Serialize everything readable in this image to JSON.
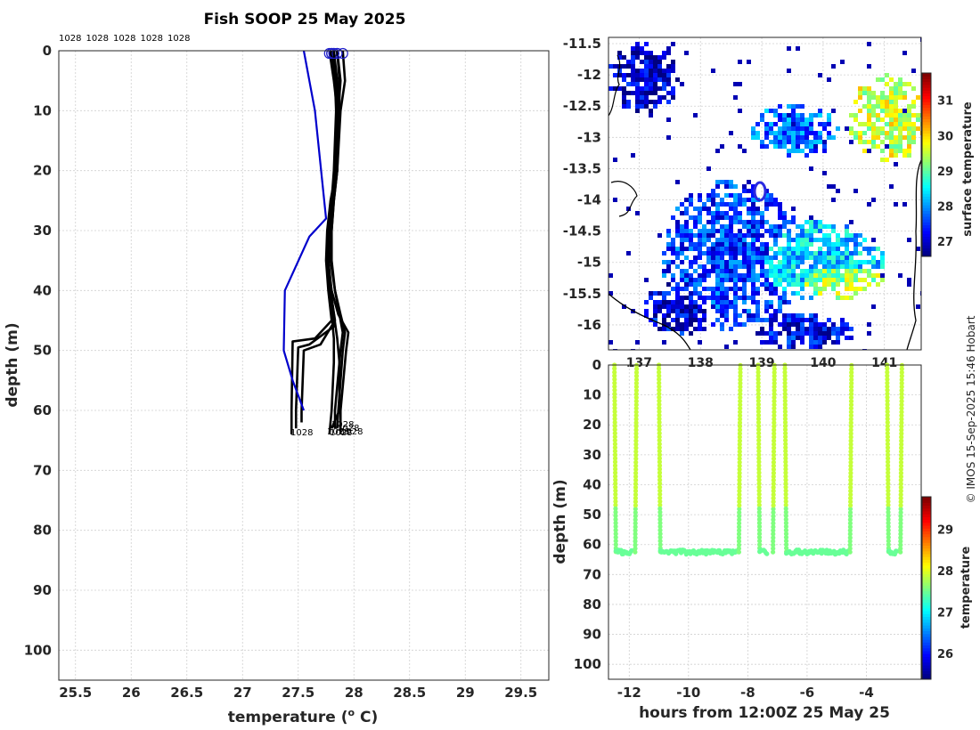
{
  "chart_data": [
    {
      "type": "line",
      "title": "Fish SOOP 25 May 2025",
      "xlabel": "temperature (",
      "xlabel_sup": "o",
      "xlabel_end": " C)",
      "ylabel": "depth (m)",
      "xlim": [
        25.35,
        29.75
      ],
      "ylim": [
        105,
        0
      ],
      "xticks": [
        25.5,
        26,
        26.5,
        27,
        27.5,
        28,
        28.5,
        29,
        29.5
      ],
      "xtick_labels": [
        "25.5",
        "26",
        "26.5",
        "27",
        "27.5",
        "28",
        "28.5",
        "29",
        "29.5"
      ],
      "yticks": [
        0,
        10,
        20,
        30,
        40,
        50,
        60,
        70,
        80,
        90,
        100
      ],
      "ytick_labels": [
        "0",
        "10",
        "20",
        "30",
        "40",
        "50",
        "60",
        "70",
        "80",
        "90",
        "100"
      ],
      "top_labels": [
        "1028",
        "1028",
        "1028",
        "1028",
        "1028"
      ],
      "bottom_labels": [
        "1028",
        "1028",
        "1028",
        "1028",
        "1028",
        "1028"
      ],
      "grid": true,
      "reference_profile": {
        "color": "#0000cc",
        "x": [
          27.55,
          27.6,
          27.65,
          27.75,
          27.6,
          27.38,
          27.37,
          27.45,
          27.55
        ],
        "y": [
          0,
          5,
          10,
          28,
          31,
          40,
          50,
          55,
          60
        ]
      },
      "profiles": [
        {
          "x": [
            27.8,
            27.83,
            27.84,
            27.82,
            27.8,
            27.78,
            27.77,
            27.79,
            27.82,
            27.85,
            27.87,
            27.87,
            27.8
          ],
          "y": [
            0,
            5,
            10,
            20,
            25,
            30,
            35,
            40,
            44,
            48,
            52,
            60,
            63
          ]
        },
        {
          "x": [
            27.82,
            27.85,
            27.86,
            27.85,
            27.82,
            27.8,
            27.79,
            27.83,
            27.88,
            27.92,
            27.9,
            27.86,
            27.85
          ],
          "y": [
            0,
            5,
            10,
            20,
            25,
            30,
            35,
            40,
            44,
            47,
            50,
            60,
            63
          ]
        },
        {
          "x": [
            27.85,
            27.88,
            27.86,
            27.84,
            27.81,
            27.78,
            27.77,
            27.8,
            27.86,
            27.95,
            27.93,
            27.88,
            27.88
          ],
          "y": [
            0,
            5,
            10,
            20,
            25,
            30,
            35,
            40,
            44,
            47,
            50,
            60,
            64
          ]
        },
        {
          "x": [
            27.78,
            27.82,
            27.85,
            27.84,
            27.8,
            27.77,
            27.76,
            27.78,
            27.8,
            27.82,
            27.82,
            27.8,
            27.78
          ],
          "y": [
            0,
            5,
            10,
            20,
            25,
            30,
            35,
            40,
            44,
            48,
            52,
            60,
            64
          ]
        },
        {
          "x": [
            27.9,
            27.92,
            27.88,
            27.85,
            27.82,
            27.8,
            27.8,
            27.83,
            27.87,
            27.9,
            27.88,
            27.83,
            27.83
          ],
          "y": [
            0,
            5,
            10,
            20,
            25,
            30,
            35,
            40,
            44,
            47,
            50,
            60,
            63
          ]
        },
        {
          "x": [
            27.8,
            27.85,
            27.86,
            27.84,
            27.79,
            27.76,
            27.75,
            27.77,
            27.8,
            27.65,
            27.45,
            27.44,
            27.44
          ],
          "y": [
            0,
            5,
            10,
            20,
            25,
            30,
            35,
            40,
            45,
            48,
            48.5,
            60,
            64
          ]
        },
        {
          "x": [
            27.85,
            27.87,
            27.87,
            27.85,
            27.8,
            27.77,
            27.76,
            27.78,
            27.82,
            27.6,
            27.5,
            27.48,
            27.48
          ],
          "y": [
            0,
            5,
            10,
            20,
            25,
            30,
            35,
            40,
            46,
            49,
            49.5,
            60,
            63
          ]
        },
        {
          "x": [
            27.82,
            27.84,
            27.85,
            27.84,
            27.8,
            27.78,
            27.77,
            27.79,
            27.83,
            27.7,
            27.55,
            27.53,
            27.53
          ],
          "y": [
            0,
            5,
            10,
            20,
            25,
            30,
            35,
            40,
            45,
            49,
            50,
            60,
            62
          ]
        }
      ]
    },
    {
      "type": "heatmap",
      "xlim": [
        136.5,
        141.6
      ],
      "ylim": [
        -16.4,
        -11.4
      ],
      "xticks": [
        137,
        138,
        139,
        140,
        141
      ],
      "xtick_labels": [
        "137",
        "138",
        "139",
        "140",
        "141"
      ],
      "yticks": [
        -11.5,
        -12,
        -12.5,
        -13,
        -13.5,
        -14,
        -14.5,
        -15,
        -15.5,
        -16
      ],
      "ytick_labels": [
        "-11.5",
        "-12",
        "-12.5",
        "-13",
        "-13.5",
        "-14",
        "-14.5",
        "-15",
        "-15.5",
        "-16"
      ],
      "colorbar": {
        "label": "surface temperature",
        "range": [
          26.6,
          31.8
        ],
        "ticks": [
          27,
          28,
          29,
          30,
          31
        ],
        "tick_labels": [
          "27",
          "28",
          "29",
          "30",
          "31"
        ]
      },
      "track_color": "#2a2ae0"
    },
    {
      "type": "scatter",
      "xlabel": "hours from 12:00Z 25 May 25",
      "ylabel": "depth (m)",
      "xlim": [
        -12.7,
        -2.15
      ],
      "ylim": [
        105,
        0
      ],
      "xticks": [
        -12,
        -10,
        -8,
        -6,
        -4
      ],
      "xtick_labels": [
        "-12",
        "-10",
        "-8",
        "-6",
        "-4"
      ],
      "yticks": [
        0,
        10,
        20,
        30,
        40,
        50,
        60,
        70,
        80,
        90,
        100
      ],
      "ytick_labels": [
        "0",
        "10",
        "20",
        "30",
        "40",
        "50",
        "60",
        "70",
        "80",
        "90",
        "100"
      ],
      "colorbar": {
        "label": "temperature",
        "range": [
          25.4,
          29.8
        ],
        "ticks": [
          26,
          27,
          28,
          29
        ],
        "tick_labels": [
          "26",
          "27",
          "28",
          "29"
        ]
      },
      "casts": [
        {
          "down": -12.5,
          "bottom_end": -11.9,
          "up": -11.75
        },
        {
          "down": -11.0,
          "bottom_end": -8.35,
          "up": -8.25
        },
        {
          "down": -7.65,
          "bottom_end": -7.35,
          "up": -7.1
        },
        {
          "down": -6.75,
          "bottom_end": -4.6,
          "up": -4.5
        },
        {
          "down": -3.3,
          "bottom_end": -2.95,
          "up": -2.8
        }
      ],
      "bottom_depth": 62.5
    }
  ],
  "copyright": "© IMOS 15-Sep-2025 15:46 Hobart"
}
